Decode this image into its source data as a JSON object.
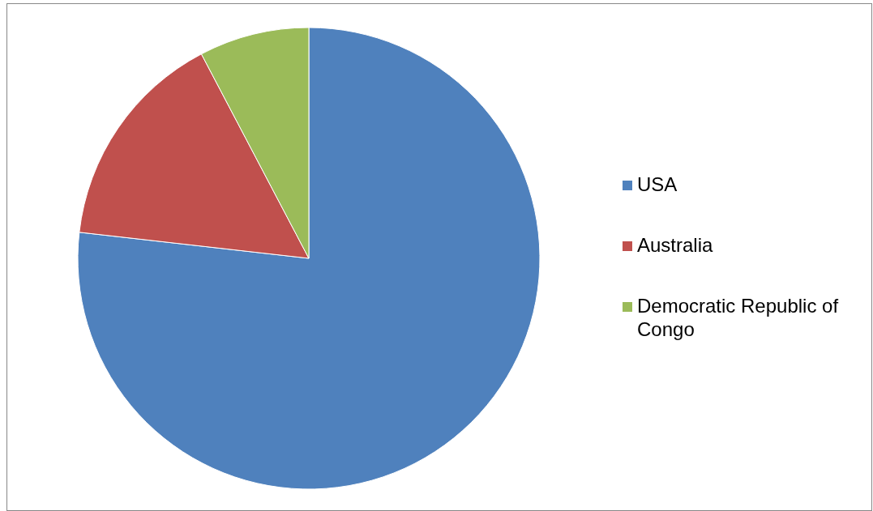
{
  "chart_data": {
    "type": "pie",
    "categories": [
      "USA",
      "Australia",
      "Democratic Republic of Congo"
    ],
    "values": [
      76.8,
      15.5,
      7.7
    ],
    "colors": [
      "#4f81bd",
      "#c0504d",
      "#9bbb59"
    ],
    "legend": "right"
  }
}
